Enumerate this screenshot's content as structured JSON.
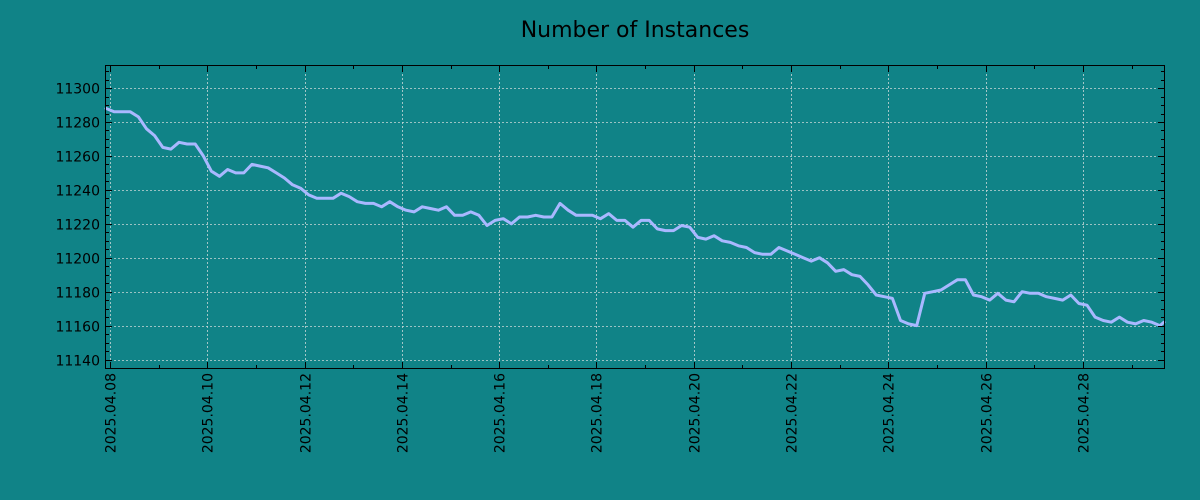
{
  "colors": {
    "background": "#108387",
    "line": "#a9b8ff",
    "axes": "#000000",
    "grid": "#c8d8d8"
  },
  "chart_data": {
    "type": "line",
    "title": "Number of Instances",
    "xlabel": "",
    "ylabel": "",
    "grid": true,
    "x_axis_kind": "date",
    "xlim": [
      "2025-04-07 22:00",
      "2025-04-29 16:00"
    ],
    "ylim": [
      11135,
      11313
    ],
    "yticks": [
      11140,
      11160,
      11180,
      11200,
      11220,
      11240,
      11260,
      11280,
      11300
    ],
    "xticks": [
      "2025.04.08",
      "2025.04.10",
      "2025.04.12",
      "2025.04.14",
      "2025.04.16",
      "2025.04.18",
      "2025.04.20",
      "2025.04.22",
      "2025.04.24",
      "2025.04.26",
      "2025.04.28"
    ],
    "series": [
      {
        "x": [
          "2025-04-07 22:00",
          "2025-04-08 02:00",
          "2025-04-08 06:00",
          "2025-04-08 10:00",
          "2025-04-08 14:00",
          "2025-04-08 18:00",
          "2025-04-08 22:00",
          "2025-04-09 02:00",
          "2025-04-09 06:00",
          "2025-04-09 10:00",
          "2025-04-09 14:00",
          "2025-04-09 18:00",
          "2025-04-09 22:00",
          "2025-04-10 02:00",
          "2025-04-10 06:00",
          "2025-04-10 10:00",
          "2025-04-10 14:00",
          "2025-04-10 18:00",
          "2025-04-10 22:00",
          "2025-04-11 02:00",
          "2025-04-11 06:00",
          "2025-04-11 10:00",
          "2025-04-11 14:00",
          "2025-04-11 18:00",
          "2025-04-11 22:00",
          "2025-04-12 02:00",
          "2025-04-12 06:00",
          "2025-04-12 10:00",
          "2025-04-12 14:00",
          "2025-04-12 18:00",
          "2025-04-12 22:00",
          "2025-04-13 02:00",
          "2025-04-13 06:00",
          "2025-04-13 10:00",
          "2025-04-13 14:00",
          "2025-04-13 18:00",
          "2025-04-13 22:00",
          "2025-04-14 02:00",
          "2025-04-14 06:00",
          "2025-04-14 10:00",
          "2025-04-14 14:00",
          "2025-04-14 18:00",
          "2025-04-14 22:00",
          "2025-04-15 02:00",
          "2025-04-15 06:00",
          "2025-04-15 10:00",
          "2025-04-15 14:00",
          "2025-04-15 18:00",
          "2025-04-15 22:00",
          "2025-04-16 02:00",
          "2025-04-16 06:00",
          "2025-04-16 10:00",
          "2025-04-16 14:00",
          "2025-04-16 18:00",
          "2025-04-16 22:00",
          "2025-04-17 02:00",
          "2025-04-17 06:00",
          "2025-04-17 10:00",
          "2025-04-17 14:00",
          "2025-04-17 18:00",
          "2025-04-17 22:00",
          "2025-04-18 02:00",
          "2025-04-18 06:00",
          "2025-04-18 10:00",
          "2025-04-18 14:00",
          "2025-04-18 18:00",
          "2025-04-18 22:00",
          "2025-04-19 02:00",
          "2025-04-19 06:00",
          "2025-04-19 10:00",
          "2025-04-19 14:00",
          "2025-04-19 18:00",
          "2025-04-19 22:00",
          "2025-04-20 02:00",
          "2025-04-20 06:00",
          "2025-04-20 10:00",
          "2025-04-20 14:00",
          "2025-04-20 18:00",
          "2025-04-20 22:00",
          "2025-04-21 02:00",
          "2025-04-21 06:00",
          "2025-04-21 10:00",
          "2025-04-21 14:00",
          "2025-04-21 18:00",
          "2025-04-21 22:00",
          "2025-04-22 02:00",
          "2025-04-22 06:00",
          "2025-04-22 10:00",
          "2025-04-22 14:00",
          "2025-04-22 18:00",
          "2025-04-22 22:00",
          "2025-04-23 02:00",
          "2025-04-23 06:00",
          "2025-04-23 10:00",
          "2025-04-23 14:00",
          "2025-04-23 18:00",
          "2025-04-23 22:00",
          "2025-04-24 02:00",
          "2025-04-24 06:00",
          "2025-04-24 10:00",
          "2025-04-24 14:00",
          "2025-04-24 18:00",
          "2025-04-24 22:00",
          "2025-04-25 02:00",
          "2025-04-25 06:00",
          "2025-04-25 10:00",
          "2025-04-25 14:00",
          "2025-04-25 18:00",
          "2025-04-25 22:00",
          "2025-04-26 02:00",
          "2025-04-26 06:00",
          "2025-04-26 10:00",
          "2025-04-26 14:00",
          "2025-04-26 18:00",
          "2025-04-26 22:00",
          "2025-04-27 02:00",
          "2025-04-27 06:00",
          "2025-04-27 10:00",
          "2025-04-27 14:00",
          "2025-04-27 18:00",
          "2025-04-27 22:00",
          "2025-04-28 02:00",
          "2025-04-28 06:00",
          "2025-04-28 10:00",
          "2025-04-28 14:00",
          "2025-04-28 18:00",
          "2025-04-28 22:00",
          "2025-04-29 02:00",
          "2025-04-29 06:00",
          "2025-04-29 10:00",
          "2025-04-29 14:00",
          "2025-04-29 16:00"
        ],
        "y": [
          11288,
          11286,
          11286,
          11286,
          11283,
          11276,
          11272,
          11265,
          11264,
          11268,
          11267,
          11267,
          11260,
          11251,
          11248,
          11252,
          11250,
          11250,
          11255,
          11254,
          11253,
          11250,
          11247,
          11243,
          11241,
          11237,
          11235,
          11235,
          11235,
          11238,
          11236,
          11233,
          11232,
          11232,
          11230,
          11233,
          11230,
          11228,
          11227,
          11230,
          11229,
          11228,
          11230,
          11225,
          11225,
          11227,
          11225,
          11219,
          11222,
          11223,
          11220,
          11224,
          11224,
          11225,
          11224,
          11224,
          11232,
          11228,
          11225,
          11225,
          11225,
          11223,
          11226,
          11222,
          11222,
          11218,
          11222,
          11222,
          11217,
          11216,
          11216,
          11219,
          11218,
          11212,
          11211,
          11213,
          11210,
          11209,
          11207,
          11206,
          11203,
          11202,
          11202,
          11206,
          11204,
          11202,
          11200,
          11198,
          11200,
          11197,
          11192,
          11193,
          11190,
          11189,
          11184,
          11178,
          11177,
          11176,
          11163,
          11161,
          11160,
          11179,
          11180,
          11181,
          11184,
          11187,
          11187,
          11178,
          11177,
          11175,
          11179,
          11175,
          11174,
          11180,
          11179,
          11179,
          11177,
          11176,
          11175,
          11178,
          11173,
          11172,
          11165,
          11163,
          11162,
          11165,
          11162,
          11161,
          11163,
          11162,
          11160,
          11162
        ]
      }
    ]
  }
}
